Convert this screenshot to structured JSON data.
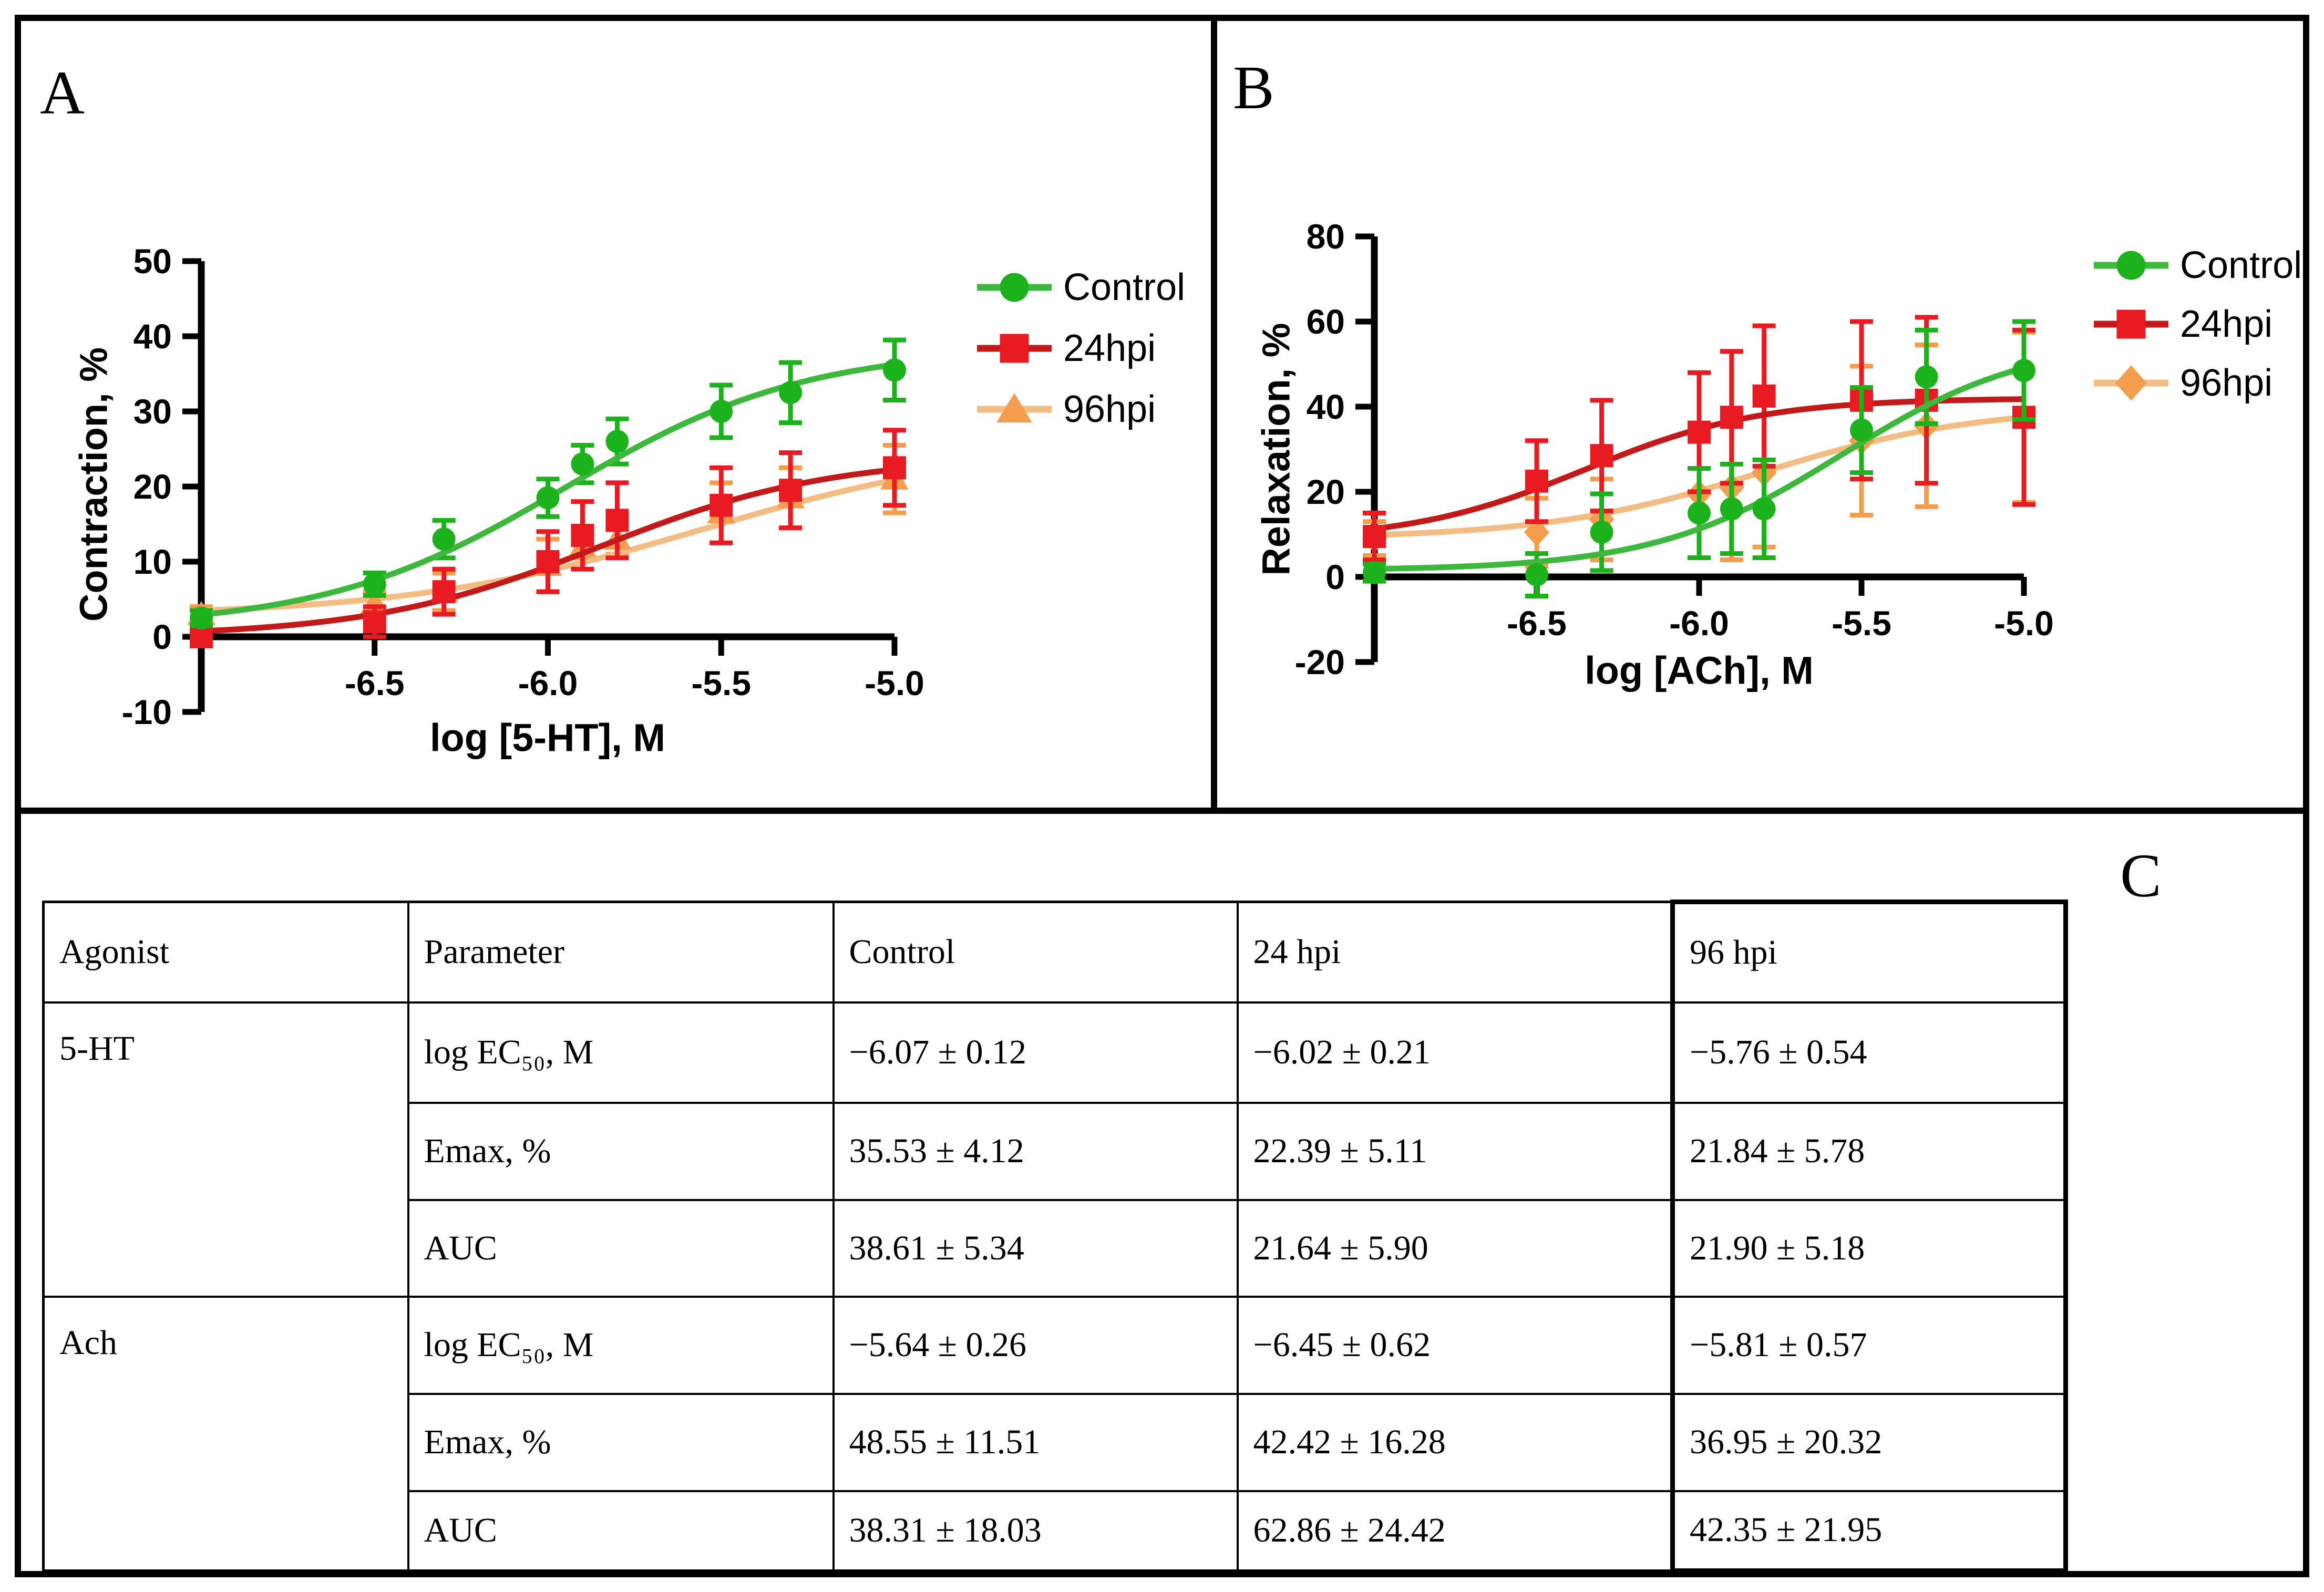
{
  "figure": {
    "panel_labels": {
      "a": "A",
      "b": "B",
      "c": "C"
    },
    "background": "#ffffff",
    "border_color": "#000000"
  },
  "colors": {
    "control_marker": "#1cb21c",
    "control_line": "#3db83d",
    "hpi24_marker": "#e81b22",
    "hpi24_line": "#c21a18",
    "hpi96_marker": "#f49d4c",
    "hpi96_line": "#f2bc82",
    "axis": "#000000"
  },
  "chart_data": [
    {
      "id": "A",
      "type": "line",
      "title": "",
      "xlabel": "log [5-HT], M",
      "ylabel": "Contraction, %",
      "xlim": [
        -7.0,
        -5.0
      ],
      "ylim": [
        -10,
        50
      ],
      "x_ticks": [
        -6.5,
        -6.0,
        -5.5,
        -5.0
      ],
      "x_tick_labels": [
        "-6.5",
        "-6.0",
        "-5.5",
        "-5.0"
      ],
      "y_ticks": [
        -10,
        0,
        10,
        20,
        30,
        40,
        50
      ],
      "grid": false,
      "legend_position": "right",
      "x": [
        -7.0,
        -6.5,
        -6.3,
        -6.0,
        -5.9,
        -5.8,
        -5.5,
        -5.3,
        -5.0
      ],
      "series": [
        {
          "name": "Control",
          "marker": "circle",
          "color": "#1cb21c",
          "line_color": "#3db83d",
          "values": [
            2.5,
            7,
            13,
            18.5,
            23,
            26,
            30,
            32.5,
            35.5
          ],
          "errors": [
            1,
            1.5,
            2.5,
            2.5,
            2.5,
            3,
            3.5,
            4,
            4
          ],
          "fit": {
            "bottom": 1.2,
            "top": 38.5,
            "logec50": -5.95,
            "hill": 1.25
          }
        },
        {
          "name": "24hpi",
          "marker": "square",
          "color": "#e81b22",
          "line_color": "#c21a18",
          "values": [
            0,
            2,
            6,
            10,
            13.5,
            15.5,
            17.5,
            19.5,
            22.5
          ],
          "errors": [
            1,
            2,
            3,
            4,
            4.5,
            5,
            5,
            5,
            5
          ],
          "fit": {
            "bottom": 0,
            "top": 24,
            "logec50": -5.85,
            "hill": 1.3
          }
        },
        {
          "name": "96hpi",
          "marker": "triangle",
          "color": "#f49d4c",
          "line_color": "#f2bc82",
          "values": [
            3,
            4.5,
            6,
            9.5,
            12,
            13,
            16.5,
            18.5,
            21
          ],
          "errors": [
            1,
            1.5,
            2.5,
            3.5,
            1.5,
            2,
            4,
            4,
            4.5
          ],
          "fit": {
            "bottom": 2.7,
            "top": 26,
            "logec50": -5.55,
            "hill": 1.0
          }
        }
      ]
    },
    {
      "id": "B",
      "type": "line",
      "title": "",
      "xlabel": "log [ACh], M",
      "ylabel": "Relaxation, %",
      "xlim": [
        -7.0,
        -5.0
      ],
      "ylim": [
        -20,
        80
      ],
      "x_ticks": [
        -6.5,
        -6.0,
        -5.5,
        -5.0
      ],
      "x_tick_labels": [
        "-6.5",
        "-6.0",
        "-5.5",
        "-5.0"
      ],
      "y_ticks": [
        -20,
        0,
        20,
        40,
        60,
        80
      ],
      "grid": false,
      "legend_position": "right",
      "x": [
        -7.0,
        -6.5,
        -6.3,
        -6.0,
        -5.9,
        -5.8,
        -5.5,
        -5.3,
        -5.0
      ],
      "series": [
        {
          "name": "Control",
          "marker": "circle",
          "color": "#1cb21c",
          "line_color": "#3db83d",
          "values": [
            1,
            0.5,
            10.5,
            15,
            16,
            16,
            34.5,
            47,
            48.5
          ],
          "errors": [
            2,
            5,
            9,
            10.5,
            10.5,
            11.5,
            10,
            11,
            11.5
          ],
          "fit": {
            "bottom": 1.5,
            "top": 56,
            "logec50": -5.56,
            "hill": 1.5
          }
        },
        {
          "name": "24hpi",
          "marker": "square",
          "color": "#e81b22",
          "line_color": "#c21a18",
          "values": [
            9.5,
            22.5,
            28.5,
            34,
            37.5,
            42.5,
            41.5,
            41.5,
            37.5
          ],
          "errors": [
            5.5,
            9.5,
            13,
            14,
            15.5,
            16.5,
            18.5,
            19.5,
            20.5
          ],
          "fit": {
            "bottom": 8.5,
            "top": 42,
            "logec50": -6.35,
            "hill": 1.6
          }
        },
        {
          "name": "96hpi",
          "marker": "diamond",
          "color": "#f49d4c",
          "line_color": "#f2bc82",
          "values": [
            9,
            10.5,
            13.5,
            19.5,
            21,
            24.5,
            32,
            35.5,
            37.5
          ],
          "errors": [
            4,
            8,
            9.5,
            15,
            17,
            17.5,
            17.5,
            19,
            20
          ],
          "fit": {
            "bottom": 9,
            "top": 40,
            "logec50": -5.81,
            "hill": 1.3
          }
        }
      ]
    }
  ],
  "table": {
    "headers": [
      "Agonist",
      "Parameter",
      "Control",
      "24 hpi",
      "96 hpi"
    ],
    "groups": [
      {
        "agonist": "5-HT",
        "rows": [
          {
            "parameter": "log EC₅₀, M",
            "control": "−6.07 ± 0.12",
            "hpi24": "−6.02 ± 0.21",
            "hpi96": "−5.76 ± 0.54"
          },
          {
            "parameter": "Emax, %",
            "control": "35.53 ± 4.12",
            "hpi24": "22.39 ± 5.11",
            "hpi96": "21.84 ± 5.78"
          },
          {
            "parameter": "AUC",
            "control": "38.61 ± 5.34",
            "hpi24": "21.64 ± 5.90",
            "hpi96": "21.90 ± 5.18"
          }
        ]
      },
      {
        "agonist": "Ach",
        "rows": [
          {
            "parameter": "log EC₅₀, M",
            "control": "−5.64 ± 0.26",
            "hpi24": "−6.45 ± 0.62",
            "hpi96": "−5.81 ± 0.57"
          },
          {
            "parameter": "Emax, %",
            "control": "48.55 ± 11.51",
            "hpi24": "42.42 ± 16.28",
            "hpi96": "36.95 ± 20.32"
          },
          {
            "parameter": "AUC",
            "control": "38.31 ± 18.03",
            "hpi24": "62.86 ± 24.42",
            "hpi96": "42.35 ± 21.95"
          }
        ]
      }
    ]
  }
}
